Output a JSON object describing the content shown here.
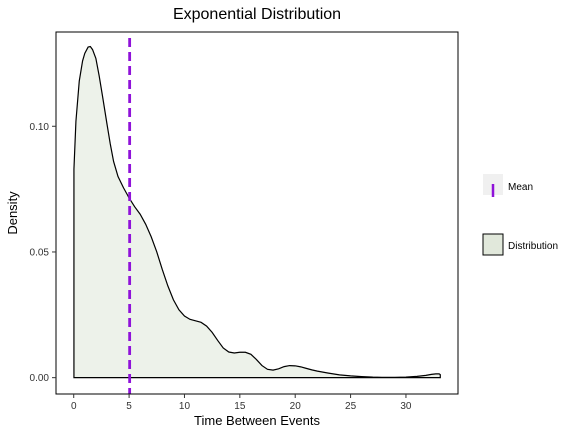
{
  "chart_data": {
    "type": "area",
    "title": "Exponential Distribution",
    "xlabel": "Time Between Events",
    "ylabel": "Density",
    "xlim": [
      -1.6,
      34.7
    ],
    "ylim": [
      -0.0065,
      0.1375
    ],
    "x_ticks": [
      0,
      5,
      10,
      15,
      20,
      25,
      30
    ],
    "y_ticks": [
      0.0,
      0.05,
      0.1
    ],
    "y_tick_labels": [
      "0.00",
      "0.05",
      "0.10"
    ],
    "grid": false,
    "legend_position": "right",
    "legend": [
      {
        "label": "Mean",
        "kind": "vline",
        "color": "#8f12d9"
      },
      {
        "label": "Distribution",
        "kind": "fill",
        "color": "#e1e8db"
      }
    ],
    "mean": 5.05,
    "series": [
      {
        "name": "Distribution",
        "fill": "#edf2ea",
        "stroke": "#000000",
        "x": [
          0.02,
          0.2,
          0.5,
          0.8,
          1.0,
          1.3,
          1.5,
          1.7,
          2.0,
          2.3,
          2.6,
          3.0,
          3.3,
          3.6,
          4.0,
          4.5,
          5.0,
          5.5,
          6.0,
          6.5,
          7.0,
          7.5,
          8.0,
          8.5,
          9.0,
          9.5,
          10.0,
          10.5,
          11.0,
          11.5,
          12.0,
          12.5,
          13.0,
          13.5,
          14.0,
          14.5,
          15.0,
          15.5,
          16.0,
          16.5,
          17.0,
          17.5,
          18.0,
          18.5,
          19.0,
          19.5,
          20.0,
          20.5,
          21.0,
          21.5,
          22.0,
          23.0,
          24.0,
          25.0,
          26.0,
          27.0,
          28.0,
          29.0,
          30.0,
          31.0,
          31.8,
          32.3,
          32.7,
          33.0,
          33.1
        ],
        "y": [
          0.083,
          0.102,
          0.118,
          0.126,
          0.129,
          0.1315,
          0.1317,
          0.1305,
          0.127,
          0.12,
          0.112,
          0.101,
          0.093,
          0.086,
          0.08,
          0.0755,
          0.0715,
          0.068,
          0.065,
          0.061,
          0.056,
          0.05,
          0.043,
          0.0365,
          0.031,
          0.027,
          0.0245,
          0.0232,
          0.0226,
          0.022,
          0.0205,
          0.018,
          0.0148,
          0.0118,
          0.0102,
          0.0098,
          0.0101,
          0.0101,
          0.0093,
          0.0072,
          0.0048,
          0.0033,
          0.003,
          0.0035,
          0.0044,
          0.0048,
          0.0047,
          0.0043,
          0.0037,
          0.0031,
          0.0026,
          0.0018,
          0.0011,
          0.0007,
          0.0004,
          0.0002,
          0.0001,
          0.0001,
          0.0002,
          0.0005,
          0.0009,
          0.0013,
          0.0015,
          0.0015,
          0.0012
        ]
      }
    ]
  }
}
